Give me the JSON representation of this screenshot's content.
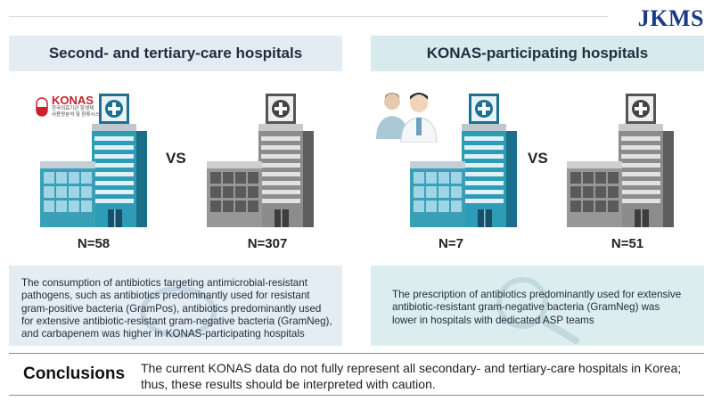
{
  "journal_logo": "JKMS",
  "colors": {
    "head_left": "#e3ecf3",
    "head_right": "#d7ebee",
    "body_left": "#e4edf4",
    "body_right": "#dcedef",
    "bldg_color": "#3aa0b8",
    "bldg_gray": "#8c8c8c"
  },
  "left_panel": {
    "title": "Second- and tertiary-care hospitals",
    "vs": "VS",
    "n_left": "N=58",
    "n_right": "N=307",
    "konas_logo": "KONAS",
    "konas_sub_1": "한국의료기관 항생제",
    "konas_sub_2": "사용량분석 및 환류시스템",
    "text": "The consumption of antibiotics targeting antimicrobial-resistant pathogens, such as antibiotics predominantly used for resistant gram-positive bacteria (GramPos), antibiotics predominantly used for extensive antibiotic-resistant gram-negative bacteria (GramNeg), and carbapenem was higher in KONAS-participating hospitals"
  },
  "right_panel": {
    "title": "KONAS-participating hospitals",
    "vs": "VS",
    "n_left": "N=7",
    "n_right": "N=51",
    "text": "The prescription of antibiotics predominantly used for extensive antibiotic-resistant gram-negative bacteria (GramNeg) was lower in hospitals with dedicated ASP teams"
  },
  "conclusions": {
    "title": "Conclusions",
    "text": "The current KONAS data do not fully represent all secondary- and tertiary-care hospitals in Korea; thus, these results should be interpreted with caution."
  }
}
